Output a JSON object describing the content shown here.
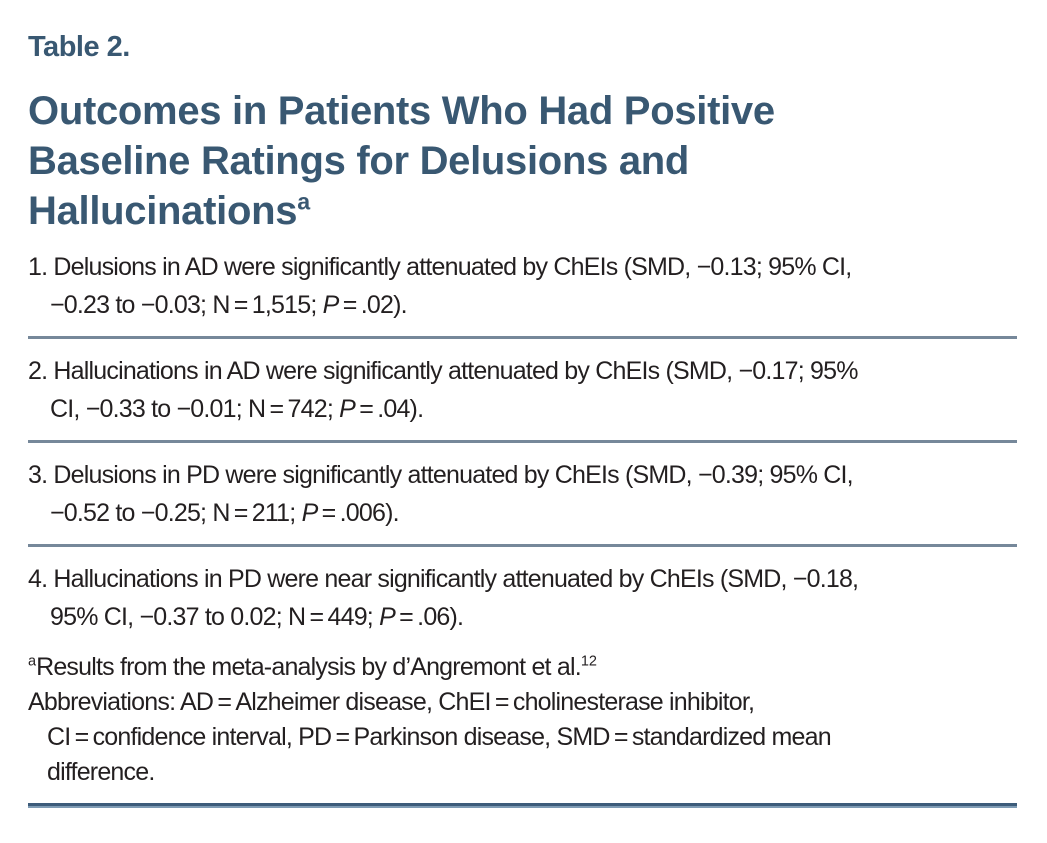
{
  "colors": {
    "background": "#ffffff",
    "title_text": "#395872",
    "body_text": "#231f20",
    "separator": "#76889a",
    "rule_dark": "#3d5c7a",
    "rule_light": "#7e9bb4"
  },
  "header": {
    "table_label": "Table 2.",
    "title_plain": "Outcomes in Patients Who Had Positive Baseline Ratings for Delusions and Hallucinations",
    "title_superscript": "a",
    "title_runs": [
      {
        "t": "Outcomes in Patients Who Had Positive"
      },
      {
        "br": true
      },
      {
        "t": "Baseline Ratings for Delusions and"
      },
      {
        "br": true
      },
      {
        "t": "Hallucinations"
      },
      {
        "t": "a",
        "sup": true
      }
    ]
  },
  "findings": [
    {
      "runs": [
        {
          "t": "1. Delusions in AD were significantly attenuated by ChEIs (SMD, −0.13; 95% CI,"
        },
        {
          "br": true
        },
        {
          "t": "−0.23 to −0.03; N = 1,515; "
        },
        {
          "t": "P",
          "i": true
        },
        {
          "t": " = .02)."
        }
      ]
    },
    {
      "runs": [
        {
          "t": "2. Hallucinations in AD were significantly attenuated by ChEIs (SMD, −0.17; 95%"
        },
        {
          "br": true
        },
        {
          "t": "CI, −0.33 to −0.01; N = 742; "
        },
        {
          "t": "P",
          "i": true
        },
        {
          "t": " = .04)."
        }
      ]
    },
    {
      "runs": [
        {
          "t": "3. Delusions in PD were significantly attenuated by ChEIs (SMD, −0.39; 95% CI,"
        },
        {
          "br": true
        },
        {
          "t": "−0.52 to −0.25; N = 211; "
        },
        {
          "t": "P",
          "i": true
        },
        {
          "t": " = .006)."
        }
      ]
    },
    {
      "runs": [
        {
          "t": "4. Hallucinations in PD were near significantly attenuated by ChEIs (SMD, −0.18,"
        },
        {
          "br": true
        },
        {
          "t": "95% CI, −0.37 to 0.02; N = 449; "
        },
        {
          "t": "P",
          "i": true
        },
        {
          "t": " = .06)."
        }
      ]
    }
  ],
  "footnotes": {
    "source_runs": [
      {
        "t": "a",
        "sup": true
      },
      {
        "t": "Results from the meta-analysis by d’Angremont et al."
      },
      {
        "t": "12",
        "sup": true
      }
    ],
    "abbreviations_runs": [
      {
        "t": "Abbreviations: AD = Alzheimer disease, ChEI = cholinesterase inhibitor,"
      },
      {
        "br": true
      },
      {
        "t": "CI = confidence interval, PD = Parkinson disease, SMD = standardized mean"
      },
      {
        "br": true
      },
      {
        "t": "difference."
      }
    ]
  }
}
